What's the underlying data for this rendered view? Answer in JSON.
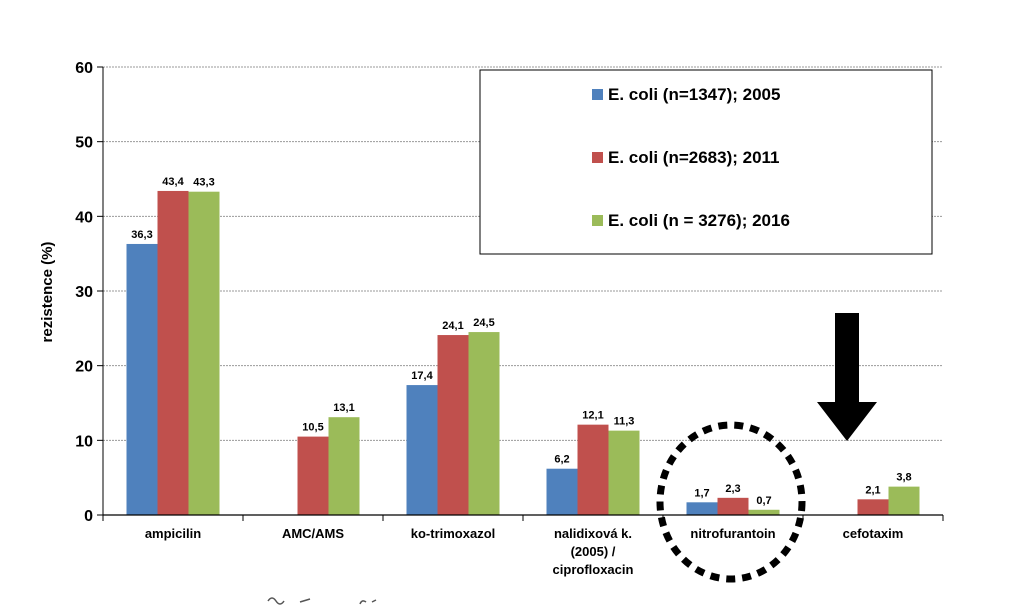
{
  "chart_data": {
    "type": "bar",
    "ylabel": "rezistence (%)",
    "ylim": [
      0,
      60
    ],
    "yticks": [
      0,
      10,
      20,
      30,
      40,
      50,
      60
    ],
    "grid": true,
    "legend_position": "top-right",
    "categories": [
      [
        "ampicilin"
      ],
      [
        "AMC/AMS"
      ],
      [
        "ko-trimoxazol"
      ],
      [
        "nalidixová k.",
        "(2005) /",
        "ciprofloxacin"
      ],
      [
        "nitrofurantoin"
      ],
      [
        "cefotaxim"
      ]
    ],
    "series": [
      {
        "name": "E. coli (n=1347); 2005",
        "color": "#4f81bd",
        "values": [
          36.3,
          null,
          17.4,
          6.2,
          1.7,
          null
        ],
        "labels": [
          "36,3",
          "",
          "17,4",
          "6,2",
          "1,7",
          ""
        ]
      },
      {
        "name": "E. coli (n=2683); 2011",
        "color": "#c0504d",
        "values": [
          43.4,
          10.5,
          24.1,
          12.1,
          2.3,
          2.1
        ],
        "labels": [
          "43,4",
          "10,5",
          "24,1",
          "12,1",
          "2,3",
          "2,1"
        ]
      },
      {
        "name": "E. coli (n = 3276); 2016",
        "color": "#9bbb59",
        "values": [
          43.3,
          13.1,
          24.5,
          11.3,
          0.7,
          3.8
        ],
        "labels": [
          "43,3",
          "13,1",
          "24,5",
          "11,3",
          "0,7",
          "3,8"
        ]
      }
    ],
    "annotations": [
      {
        "type": "dashed-circle",
        "category": "nitrofurantoin"
      },
      {
        "type": "down-arrow",
        "category": "cefotaxim"
      }
    ]
  }
}
